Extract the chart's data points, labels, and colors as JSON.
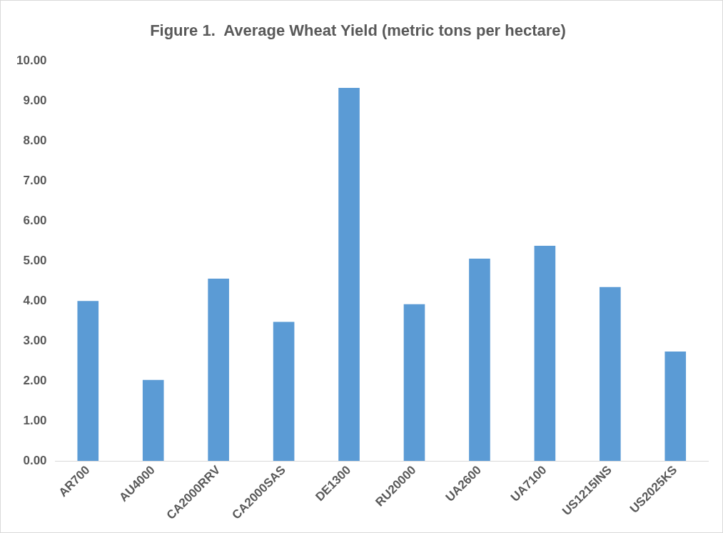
{
  "chart_data": {
    "type": "bar",
    "title": "Figure 1.  Average Wheat Yield (metric tons per hectare)",
    "categories": [
      "AR700",
      "AU4000",
      "CA2000RRV",
      "CA2000SAS",
      "DE1300",
      "RU20000",
      "UA2600",
      "UA7100",
      "US1215INS",
      "US2025KS"
    ],
    "values": [
      4.0,
      2.03,
      4.56,
      3.48,
      9.33,
      3.92,
      5.06,
      5.38,
      4.35,
      2.74
    ],
    "color": "#5b9bd5",
    "ylim": [
      0,
      10
    ],
    "yticks": [
      {
        "value": 0,
        "label": "0.00"
      },
      {
        "value": 1,
        "label": "1.00"
      },
      {
        "value": 2,
        "label": "2.00"
      },
      {
        "value": 3,
        "label": "3.00"
      },
      {
        "value": 4,
        "label": "4.00"
      },
      {
        "value": 5,
        "label": "5.00"
      },
      {
        "value": 6,
        "label": "6.00"
      },
      {
        "value": 7,
        "label": "7.00"
      },
      {
        "value": 8,
        "label": "8.00"
      },
      {
        "value": 9,
        "label": "9.00"
      },
      {
        "value": 10,
        "label": "10.00"
      }
    ],
    "grid": false,
    "legend": false
  }
}
